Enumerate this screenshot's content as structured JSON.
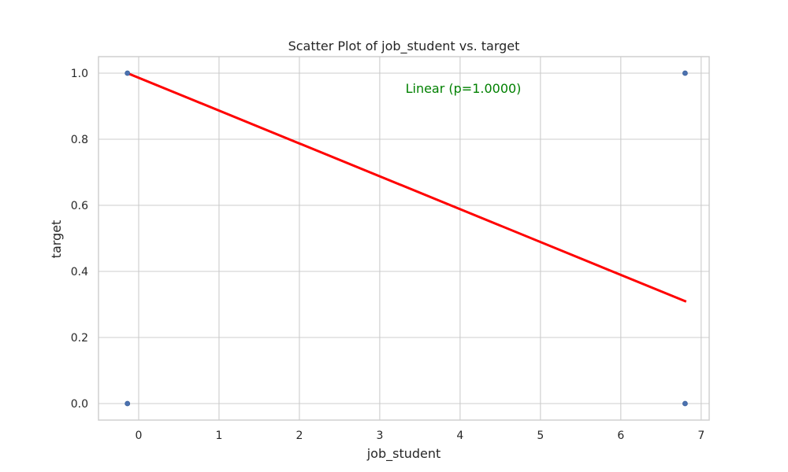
{
  "chart_data": {
    "type": "scatter",
    "title": "Scatter Plot of job_student vs. target",
    "xlabel": "job_student",
    "ylabel": "target",
    "xlim": [
      -0.5,
      7.1
    ],
    "ylim": [
      -0.05,
      1.05
    ],
    "xticks": [
      0,
      1,
      2,
      3,
      4,
      5,
      6,
      7
    ],
    "yticks": [
      0.0,
      0.2,
      0.4,
      0.6,
      0.8,
      1.0
    ],
    "xtick_labels": [
      "0",
      "1",
      "2",
      "3",
      "4",
      "5",
      "6",
      "7"
    ],
    "ytick_labels": [
      "0.0",
      "0.2",
      "0.4",
      "0.6",
      "0.8",
      "1.0"
    ],
    "grid": true,
    "points": [
      {
        "x": -0.14,
        "y": 1.0
      },
      {
        "x": -0.14,
        "y": 0.0
      },
      {
        "x": 6.8,
        "y": 1.0
      },
      {
        "x": 6.8,
        "y": 0.0
      }
    ],
    "trend_line": {
      "x": [
        -0.14,
        6.8
      ],
      "y": [
        1.0,
        0.31
      ]
    },
    "annotation": "Linear (p=1.0000)",
    "colors": {
      "points": "#4c72b0",
      "trend_line": "#ff0000",
      "annotation": "#008000",
      "grid": "#cccccc",
      "frame": "#cccccc"
    }
  }
}
